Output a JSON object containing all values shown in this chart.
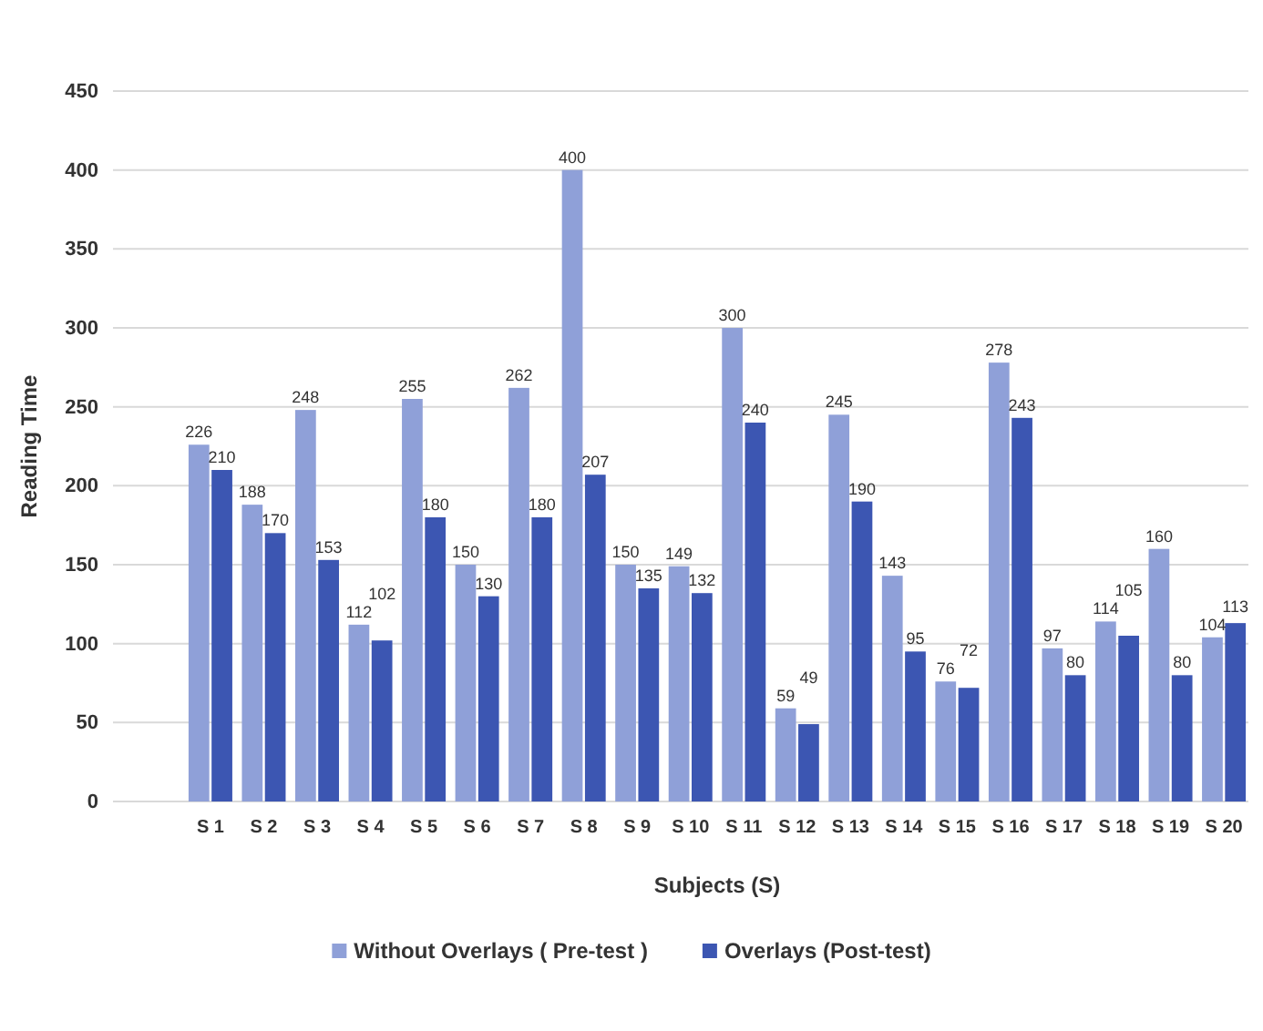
{
  "chart_data": {
    "type": "bar",
    "xlabel": "Subjects (S)",
    "ylabel": "Reading Time",
    "categories": [
      "S 1",
      "S 2",
      "S 3",
      "S 4",
      "S 5",
      "S 6",
      "S 7",
      "S 8",
      "S 9",
      "S 10",
      "S 11",
      "S 12",
      "S 13",
      "S 14",
      "S 15",
      "S 16",
      "S 17",
      "S 18",
      "S 19",
      "S 20"
    ],
    "series": [
      {
        "name": "Without Overlays ( Pre-test )",
        "color": "#8fa0d8",
        "values": [
          226,
          188,
          248,
          112,
          255,
          150,
          262,
          400,
          150,
          149,
          300,
          59,
          245,
          143,
          76,
          278,
          97,
          114,
          160,
          104
        ]
      },
      {
        "name": "Overlays (Post-test)",
        "color": "#3c56b2",
        "values": [
          210,
          170,
          153,
          102,
          180,
          130,
          180,
          207,
          135,
          132,
          240,
          49,
          190,
          95,
          72,
          243,
          80,
          105,
          80,
          113
        ]
      }
    ],
    "ylim": [
      0,
      450
    ],
    "yticks": [
      0,
      50,
      100,
      150,
      200,
      250,
      300,
      350,
      400,
      450
    ],
    "grid": "y",
    "legend": "bottom",
    "data_labels": true
  }
}
